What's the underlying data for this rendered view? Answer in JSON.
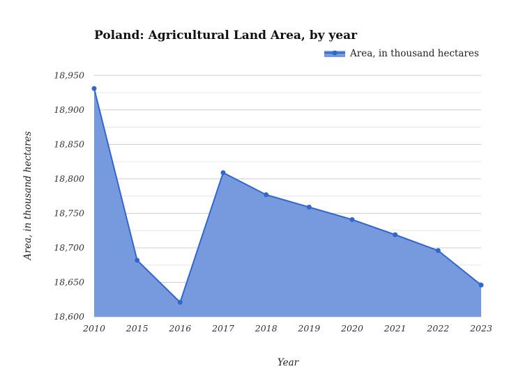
{
  "chart_data": {
    "type": "area",
    "title": "Poland: Agricultural Land Area, by year",
    "xlabel": "Year",
    "ylabel": "Area, in thousand hectares",
    "categories": [
      "2010",
      "2015",
      "2016",
      "2017",
      "2018",
      "2019",
      "2020",
      "2021",
      "2022",
      "2023"
    ],
    "series": [
      {
        "name": "Area, in thousand hectares",
        "values": [
          18931,
          18682,
          18621,
          18809,
          18777,
          18759,
          18741,
          18719,
          18696,
          18646
        ]
      }
    ],
    "ylim": [
      18600,
      18950
    ],
    "yticks": [
      "18,600",
      "18,650",
      "18,700",
      "18,750",
      "18,800",
      "18,850",
      "18,900",
      "18,950"
    ],
    "grid": true,
    "legend_position": "top-right",
    "colors": {
      "line": "#3366cc",
      "fill": "#7799dd"
    }
  }
}
